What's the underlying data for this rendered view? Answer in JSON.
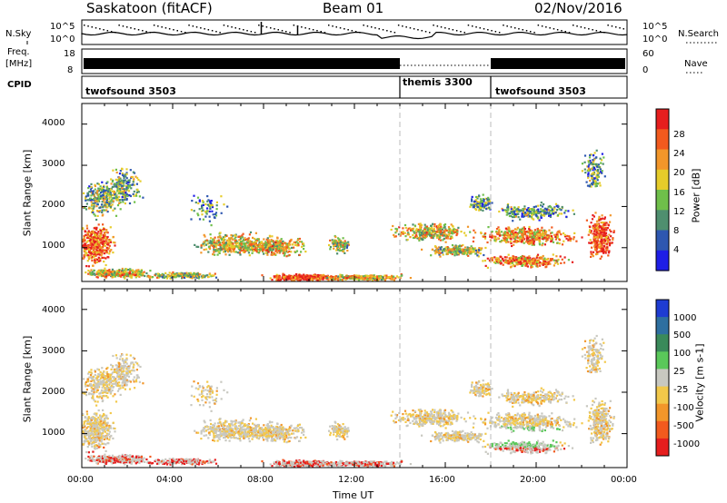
{
  "header": {
    "station": "Saskatoon (fitACF)",
    "beam": "Beam 01",
    "date": "02/Nov/2016"
  },
  "top_panels": {
    "nsky_label": "N.Sky",
    "nsky_ticks": [
      "10^5",
      "10^0"
    ],
    "nsearch_label": "N.Search",
    "nsearch_ticks": [
      "10^5",
      "10^0"
    ],
    "freq_label_1": "Freq.",
    "freq_label_2": "[MHz]",
    "freq_ticks": [
      "18",
      "8"
    ],
    "nave_label": "Nave",
    "nave_ticks": [
      "60",
      "0"
    ],
    "cpid_label": "CPID",
    "cpid_segments": [
      {
        "label": "twofsound 3503",
        "start_hour": 0,
        "end_hour": 14
      },
      {
        "label": "themis 3300",
        "start_hour": 14,
        "end_hour": 18
      },
      {
        "label": "twofsound 3503",
        "start_hour": 18,
        "end_hour": 24
      }
    ]
  },
  "chart_data": [
    {
      "type": "heatmap",
      "name": "power-panel",
      "ylabel": "Slant Range [km]",
      "xlabel": "",
      "xlim": [
        0,
        24
      ],
      "ylim": [
        180,
        4500
      ],
      "y_ticks": [
        "1000",
        "2000",
        "3000",
        "4000"
      ],
      "colorbar": {
        "label": "Power [dB]",
        "ticks": [
          "4",
          "8",
          "12",
          "16",
          "20",
          "24",
          "28"
        ],
        "colors": [
          "#1e1ee6",
          "#2e57b0",
          "#4f8f6f",
          "#6fbf4a",
          "#e6cc2a",
          "#f2962a",
          "#f25a1e",
          "#e61e1e"
        ]
      },
      "dividers_hour": [
        14,
        18
      ]
    },
    {
      "type": "heatmap",
      "name": "velocity-panel",
      "ylabel": "Slant Range [km]",
      "xlabel": "Time UT",
      "xlim": [
        0,
        24
      ],
      "ylim": [
        180,
        4500
      ],
      "y_ticks": [
        "1000",
        "2000",
        "3000",
        "4000"
      ],
      "x_ticks": [
        "00:00",
        "04:00",
        "08:00",
        "12:00",
        "16:00",
        "20:00",
        "00:00"
      ],
      "colorbar": {
        "label": "Velocity [m s-1]",
        "ticks": [
          "1000",
          "500",
          "100",
          "25",
          "-25",
          "-100",
          "-500",
          "-1000"
        ],
        "colors": [
          "#1e3cd2",
          "#2e6fa0",
          "#3a8a5a",
          "#5ac85a",
          "#c8c8c0",
          "#f2c84a",
          "#f2962a",
          "#f25a1e",
          "#e61e1e"
        ]
      },
      "dividers_hour": [
        14,
        18
      ]
    }
  ]
}
